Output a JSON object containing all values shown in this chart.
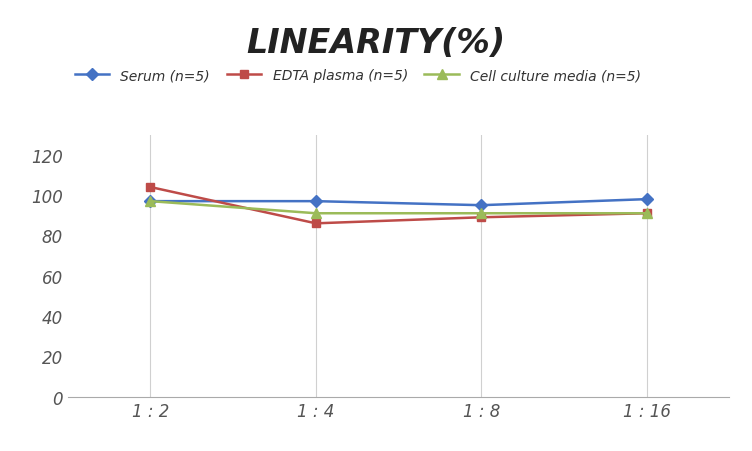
{
  "title": "LINEARITY(%)",
  "x_labels": [
    "1 : 2",
    "1 : 4",
    "1 : 8",
    "1 : 16"
  ],
  "x_positions": [
    0,
    1,
    2,
    3
  ],
  "series": [
    {
      "label": "Serum (n=5)",
      "values": [
        97,
        97,
        95,
        98
      ],
      "color": "#4472C4",
      "marker": "D",
      "marker_size": 6,
      "linewidth": 1.8
    },
    {
      "label": "EDTA plasma (n=5)",
      "values": [
        104,
        86,
        89,
        91
      ],
      "color": "#BE4B48",
      "marker": "s",
      "marker_size": 6,
      "linewidth": 1.8
    },
    {
      "label": "Cell culture media (n=5)",
      "values": [
        97,
        91,
        91,
        91
      ],
      "color": "#9BBB59",
      "marker": "^",
      "marker_size": 7,
      "linewidth": 1.8
    }
  ],
  "ylim": [
    0,
    130
  ],
  "yticks": [
    0,
    20,
    40,
    60,
    80,
    100,
    120
  ],
  "grid_color": "#D0D0D0",
  "background_color": "#FFFFFF",
  "title_fontsize": 24,
  "title_fontstyle": "italic",
  "title_fontweight": "bold",
  "legend_fontsize": 10,
  "tick_fontsize": 12
}
